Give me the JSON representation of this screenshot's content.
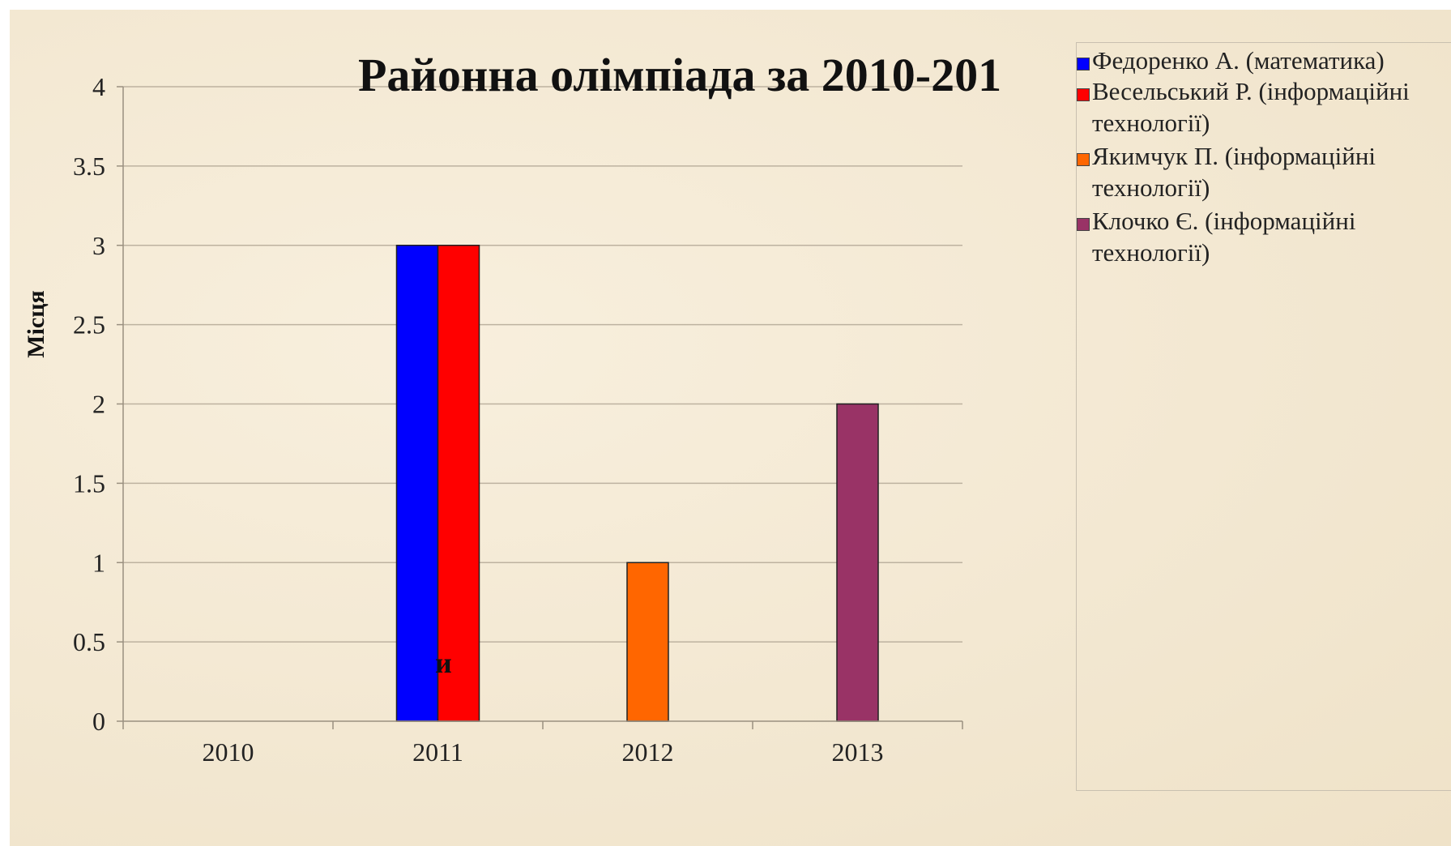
{
  "chart_data": {
    "type": "bar",
    "title": "Районна олімпіада за 2010-201",
    "ylabel": "Місця",
    "xlabel": "",
    "categories": [
      "2010",
      "2011",
      "2012",
      "2013"
    ],
    "ylim": [
      0,
      4
    ],
    "yticks": [
      "0",
      "0.5",
      "1",
      "1.5",
      "2",
      "2.5",
      "3",
      "3.5",
      "4"
    ],
    "grid": true,
    "legend_position": "right",
    "series": [
      {
        "name": "Федоренко А. (математика)",
        "color": "#0000ff",
        "values": [
          0,
          3,
          0,
          0
        ]
      },
      {
        "name": "Весельський Р. (інформаційні технології)",
        "color": "#ff0000",
        "values": [
          0,
          3,
          0,
          0
        ]
      },
      {
        "name": "Якимчук П. (інформаційні технології)",
        "color": "#ff6600",
        "values": [
          0,
          0,
          1,
          0
        ]
      },
      {
        "name": "Клочко Є. (інформаційні технології)",
        "color": "#993366",
        "values": [
          0,
          0,
          0,
          2
        ]
      }
    ],
    "annotation": "и"
  }
}
